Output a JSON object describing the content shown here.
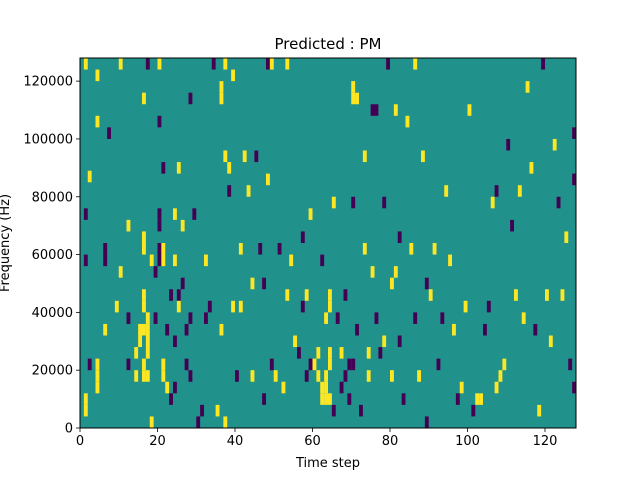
{
  "chart_data": {
    "type": "heatmap",
    "title": "Predicted : PM",
    "xlabel": "Time step",
    "ylabel": "Frequency (Hz)",
    "xlim": [
      0,
      128
    ],
    "ylim": [
      0,
      128000
    ],
    "x_ticks": [
      0,
      20,
      40,
      60,
      80,
      100,
      120
    ],
    "y_ticks": [
      0,
      20000,
      40000,
      60000,
      80000,
      100000,
      120000
    ],
    "x_tick_labels": [
      "0",
      "20",
      "40",
      "60",
      "80",
      "100",
      "120"
    ],
    "y_tick_labels": [
      "0",
      "20000",
      "40000",
      "60000",
      "80000",
      "100000",
      "120000"
    ],
    "colormap": "viridis",
    "value_levels": [
      -1,
      0,
      1
    ],
    "colors": {
      "low": "#440154",
      "mid": "#21918c",
      "high": "#fde725"
    },
    "background_value": 0,
    "grid": false,
    "cells": [
      {
        "t": 1,
        "f": 4000,
        "v": 1
      },
      {
        "t": 1,
        "f": 8000,
        "v": 1
      },
      {
        "t": 1,
        "f": 124000,
        "v": 1
      },
      {
        "t": 2,
        "f": 85000,
        "v": 1
      },
      {
        "t": 2,
        "f": 20000,
        "v": -1
      },
      {
        "t": 1,
        "f": 56000,
        "v": -1
      },
      {
        "t": 1,
        "f": 72000,
        "v": -1
      },
      {
        "t": 4,
        "f": 12000,
        "v": 1
      },
      {
        "t": 4,
        "f": 16000,
        "v": 1
      },
      {
        "t": 4,
        "f": 20000,
        "v": 1
      },
      {
        "t": 4,
        "f": 104000,
        "v": 1
      },
      {
        "t": 4,
        "f": 120000,
        "v": 1
      },
      {
        "t": 6,
        "f": 32000,
        "v": 1
      },
      {
        "t": 6,
        "f": 56000,
        "v": -1
      },
      {
        "t": 6,
        "f": 60000,
        "v": -1
      },
      {
        "t": 7,
        "f": 100000,
        "v": -1
      },
      {
        "t": 9,
        "f": 40000,
        "v": 1
      },
      {
        "t": 10,
        "f": 124000,
        "v": 1
      },
      {
        "t": 10,
        "f": 52000,
        "v": 1
      },
      {
        "t": 12,
        "f": 68000,
        "v": 1
      },
      {
        "t": 12,
        "f": 20000,
        "v": -1
      },
      {
        "t": 12,
        "f": 36000,
        "v": -1
      },
      {
        "t": 14,
        "f": 16000,
        "v": 1
      },
      {
        "t": 14,
        "f": 24000,
        "v": 1
      },
      {
        "t": 15,
        "f": 32000,
        "v": 1
      },
      {
        "t": 15,
        "f": 28000,
        "v": 1
      },
      {
        "t": 16,
        "f": 32000,
        "v": 1
      },
      {
        "t": 16,
        "f": 20000,
        "v": 1
      },
      {
        "t": 16,
        "f": 16000,
        "v": 1
      },
      {
        "t": 16,
        "f": 40000,
        "v": 1
      },
      {
        "t": 16,
        "f": 44000,
        "v": 1
      },
      {
        "t": 16,
        "f": 60000,
        "v": 1
      },
      {
        "t": 16,
        "f": 64000,
        "v": 1
      },
      {
        "t": 16,
        "f": 112000,
        "v": 1
      },
      {
        "t": 17,
        "f": 36000,
        "v": 1
      },
      {
        "t": 17,
        "f": 32000,
        "v": 1
      },
      {
        "t": 17,
        "f": 28000,
        "v": 1
      },
      {
        "t": 17,
        "f": 24000,
        "v": 1
      },
      {
        "t": 17,
        "f": 16000,
        "v": 1
      },
      {
        "t": 17,
        "f": 124000,
        "v": -1
      },
      {
        "t": 18,
        "f": 0,
        "v": 1
      },
      {
        "t": 18,
        "f": 56000,
        "v": 1
      },
      {
        "t": 19,
        "f": 36000,
        "v": -1
      },
      {
        "t": 19,
        "f": 52000,
        "v": -1
      },
      {
        "t": 20,
        "f": 56000,
        "v": -1
      },
      {
        "t": 20,
        "f": 60000,
        "v": -1
      },
      {
        "t": 20,
        "f": 68000,
        "v": -1
      },
      {
        "t": 20,
        "f": 72000,
        "v": -1
      },
      {
        "t": 20,
        "f": 104000,
        "v": -1
      },
      {
        "t": 20,
        "f": 124000,
        "v": 1
      },
      {
        "t": 21,
        "f": 16000,
        "v": 1
      },
      {
        "t": 21,
        "f": 20000,
        "v": 1
      },
      {
        "t": 21,
        "f": 56000,
        "v": 1
      },
      {
        "t": 21,
        "f": 60000,
        "v": 1
      },
      {
        "t": 21,
        "f": 88000,
        "v": -1
      },
      {
        "t": 22,
        "f": 32000,
        "v": -1
      },
      {
        "t": 22,
        "f": 12000,
        "v": 1
      },
      {
        "t": 23,
        "f": 44000,
        "v": -1
      },
      {
        "t": 23,
        "f": 8000,
        "v": -1
      },
      {
        "t": 24,
        "f": 12000,
        "v": -1
      },
      {
        "t": 24,
        "f": 28000,
        "v": -1
      },
      {
        "t": 24,
        "f": 56000,
        "v": 1
      },
      {
        "t": 24,
        "f": 72000,
        "v": 1
      },
      {
        "t": 25,
        "f": 88000,
        "v": 1
      },
      {
        "t": 25,
        "f": 44000,
        "v": -1
      },
      {
        "t": 25,
        "f": 40000,
        "v": 1
      },
      {
        "t": 26,
        "f": 68000,
        "v": 1
      },
      {
        "t": 26,
        "f": 48000,
        "v": -1
      },
      {
        "t": 27,
        "f": 20000,
        "v": -1
      },
      {
        "t": 27,
        "f": 32000,
        "v": -1
      },
      {
        "t": 28,
        "f": 16000,
        "v": -1
      },
      {
        "t": 28,
        "f": 36000,
        "v": -1
      },
      {
        "t": 28,
        "f": 112000,
        "v": -1
      },
      {
        "t": 29,
        "f": 72000,
        "v": -1
      },
      {
        "t": 30,
        "f": 0,
        "v": -1
      },
      {
        "t": 31,
        "f": 4000,
        "v": -1
      },
      {
        "t": 32,
        "f": 56000,
        "v": 1
      },
      {
        "t": 32,
        "f": 36000,
        "v": -1
      },
      {
        "t": 33,
        "f": 40000,
        "v": -1
      },
      {
        "t": 34,
        "f": 124000,
        "v": -1
      },
      {
        "t": 35,
        "f": 4000,
        "v": 1
      },
      {
        "t": 36,
        "f": 112000,
        "v": 1
      },
      {
        "t": 36,
        "f": 116000,
        "v": 1
      },
      {
        "t": 36,
        "f": 32000,
        "v": 1
      },
      {
        "t": 37,
        "f": 0,
        "v": 1
      },
      {
        "t": 37,
        "f": 92000,
        "v": 1
      },
      {
        "t": 37,
        "f": 124000,
        "v": 1
      },
      {
        "t": 38,
        "f": 88000,
        "v": 1
      },
      {
        "t": 38,
        "f": 80000,
        "v": -1
      },
      {
        "t": 39,
        "f": 40000,
        "v": 1
      },
      {
        "t": 39,
        "f": 120000,
        "v": 1
      },
      {
        "t": 40,
        "f": 16000,
        "v": -1
      },
      {
        "t": 41,
        "f": 60000,
        "v": 1
      },
      {
        "t": 41,
        "f": 40000,
        "v": 1
      },
      {
        "t": 42,
        "f": 92000,
        "v": 1
      },
      {
        "t": 43,
        "f": 80000,
        "v": 1
      },
      {
        "t": 44,
        "f": 16000,
        "v": 1
      },
      {
        "t": 44,
        "f": 48000,
        "v": 1
      },
      {
        "t": 45,
        "f": 92000,
        "v": -1
      },
      {
        "t": 46,
        "f": 60000,
        "v": -1
      },
      {
        "t": 47,
        "f": 8000,
        "v": -1
      },
      {
        "t": 47,
        "f": 48000,
        "v": -1
      },
      {
        "t": 48,
        "f": 84000,
        "v": 1
      },
      {
        "t": 48,
        "f": 124000,
        "v": -1
      },
      {
        "t": 49,
        "f": 124000,
        "v": 1
      },
      {
        "t": 49,
        "f": 20000,
        "v": -1
      },
      {
        "t": 50,
        "f": 16000,
        "v": 1
      },
      {
        "t": 51,
        "f": 60000,
        "v": -1
      },
      {
        "t": 52,
        "f": 12000,
        "v": 1
      },
      {
        "t": 53,
        "f": 124000,
        "v": 1
      },
      {
        "t": 53,
        "f": 44000,
        "v": 1
      },
      {
        "t": 54,
        "f": 56000,
        "v": 1
      },
      {
        "t": 55,
        "f": 28000,
        "v": 1
      },
      {
        "t": 56,
        "f": 24000,
        "v": -1
      },
      {
        "t": 57,
        "f": 40000,
        "v": -1
      },
      {
        "t": 57,
        "f": 64000,
        "v": -1
      },
      {
        "t": 58,
        "f": 16000,
        "v": -1
      },
      {
        "t": 58,
        "f": 44000,
        "v": 1
      },
      {
        "t": 59,
        "f": 20000,
        "v": -1
      },
      {
        "t": 59,
        "f": 72000,
        "v": 1
      },
      {
        "t": 60,
        "f": 20000,
        "v": 1
      },
      {
        "t": 61,
        "f": 16000,
        "v": 1
      },
      {
        "t": 61,
        "f": 24000,
        "v": 1
      },
      {
        "t": 62,
        "f": 12000,
        "v": 1
      },
      {
        "t": 62,
        "f": 8000,
        "v": 1
      },
      {
        "t": 62,
        "f": 56000,
        "v": -1
      },
      {
        "t": 63,
        "f": 8000,
        "v": 1
      },
      {
        "t": 63,
        "f": 12000,
        "v": 1
      },
      {
        "t": 63,
        "f": 16000,
        "v": 1
      },
      {
        "t": 63,
        "f": 36000,
        "v": 1
      },
      {
        "t": 64,
        "f": 8000,
        "v": 1
      },
      {
        "t": 64,
        "f": 20000,
        "v": 1
      },
      {
        "t": 64,
        "f": 24000,
        "v": 1
      },
      {
        "t": 64,
        "f": 40000,
        "v": 1
      },
      {
        "t": 64,
        "f": 44000,
        "v": 1
      },
      {
        "t": 65,
        "f": 4000,
        "v": -1
      },
      {
        "t": 65,
        "f": 76000,
        "v": 1
      },
      {
        "t": 66,
        "f": 36000,
        "v": -1
      },
      {
        "t": 67,
        "f": 12000,
        "v": -1
      },
      {
        "t": 67,
        "f": 24000,
        "v": 1
      },
      {
        "t": 68,
        "f": 16000,
        "v": -1
      },
      {
        "t": 68,
        "f": 44000,
        "v": -1
      },
      {
        "t": 69,
        "f": 8000,
        "v": -1
      },
      {
        "t": 69,
        "f": 20000,
        "v": -1
      },
      {
        "t": 70,
        "f": 20000,
        "v": -1
      },
      {
        "t": 70,
        "f": 76000,
        "v": -1
      },
      {
        "t": 70,
        "f": 112000,
        "v": 1
      },
      {
        "t": 70,
        "f": 116000,
        "v": 1
      },
      {
        "t": 71,
        "f": 32000,
        "v": -1
      },
      {
        "t": 71,
        "f": 112000,
        "v": 1
      },
      {
        "t": 72,
        "f": 4000,
        "v": -1
      },
      {
        "t": 73,
        "f": 60000,
        "v": 1
      },
      {
        "t": 73,
        "f": 92000,
        "v": 1
      },
      {
        "t": 74,
        "f": 16000,
        "v": 1
      },
      {
        "t": 74,
        "f": 24000,
        "v": 1
      },
      {
        "t": 75,
        "f": 52000,
        "v": 1
      },
      {
        "t": 75,
        "f": 108000,
        "v": -1
      },
      {
        "t": 76,
        "f": 108000,
        "v": -1
      },
      {
        "t": 76,
        "f": 36000,
        "v": -1
      },
      {
        "t": 77,
        "f": 24000,
        "v": -1
      },
      {
        "t": 78,
        "f": 28000,
        "v": 1
      },
      {
        "t": 78,
        "f": 76000,
        "v": -1
      },
      {
        "t": 79,
        "f": 124000,
        "v": -1
      },
      {
        "t": 80,
        "f": 16000,
        "v": 1
      },
      {
        "t": 80,
        "f": 48000,
        "v": 1
      },
      {
        "t": 81,
        "f": 52000,
        "v": 1
      },
      {
        "t": 81,
        "f": 108000,
        "v": 1
      },
      {
        "t": 82,
        "f": 28000,
        "v": -1
      },
      {
        "t": 82,
        "f": 64000,
        "v": -1
      },
      {
        "t": 83,
        "f": 8000,
        "v": -1
      },
      {
        "t": 84,
        "f": 104000,
        "v": 1
      },
      {
        "t": 85,
        "f": 60000,
        "v": 1
      },
      {
        "t": 86,
        "f": 124000,
        "v": 1
      },
      {
        "t": 86,
        "f": 36000,
        "v": -1
      },
      {
        "t": 87,
        "f": 16000,
        "v": 1
      },
      {
        "t": 88,
        "f": 92000,
        "v": 1
      },
      {
        "t": 89,
        "f": 0,
        "v": -1
      },
      {
        "t": 89,
        "f": 48000,
        "v": -1
      },
      {
        "t": 90,
        "f": 44000,
        "v": 1
      },
      {
        "t": 91,
        "f": 60000,
        "v": 1
      },
      {
        "t": 92,
        "f": 20000,
        "v": -1
      },
      {
        "t": 93,
        "f": 36000,
        "v": -1
      },
      {
        "t": 94,
        "f": 80000,
        "v": 1
      },
      {
        "t": 95,
        "f": 56000,
        "v": 1
      },
      {
        "t": 96,
        "f": 32000,
        "v": 1
      },
      {
        "t": 97,
        "f": 8000,
        "v": -1
      },
      {
        "t": 98,
        "f": 12000,
        "v": 1
      },
      {
        "t": 99,
        "f": 40000,
        "v": 1
      },
      {
        "t": 100,
        "f": 108000,
        "v": 1
      },
      {
        "t": 101,
        "f": 4000,
        "v": -1
      },
      {
        "t": 102,
        "f": 8000,
        "v": 1
      },
      {
        "t": 103,
        "f": 8000,
        "v": 1
      },
      {
        "t": 104,
        "f": 32000,
        "v": -1
      },
      {
        "t": 105,
        "f": 40000,
        "v": -1
      },
      {
        "t": 106,
        "f": 76000,
        "v": 1
      },
      {
        "t": 107,
        "f": 12000,
        "v": 1
      },
      {
        "t": 107,
        "f": 80000,
        "v": -1
      },
      {
        "t": 108,
        "f": 16000,
        "v": 1
      },
      {
        "t": 109,
        "f": 20000,
        "v": 1
      },
      {
        "t": 110,
        "f": 96000,
        "v": -1
      },
      {
        "t": 111,
        "f": 68000,
        "v": -1
      },
      {
        "t": 112,
        "f": 44000,
        "v": 1
      },
      {
        "t": 113,
        "f": 80000,
        "v": 1
      },
      {
        "t": 114,
        "f": 36000,
        "v": 1
      },
      {
        "t": 115,
        "f": 116000,
        "v": 1
      },
      {
        "t": 116,
        "f": 88000,
        "v": 1
      },
      {
        "t": 117,
        "f": 32000,
        "v": -1
      },
      {
        "t": 118,
        "f": 4000,
        "v": 1
      },
      {
        "t": 119,
        "f": 124000,
        "v": -1
      },
      {
        "t": 120,
        "f": 44000,
        "v": 1
      },
      {
        "t": 121,
        "f": 28000,
        "v": 1
      },
      {
        "t": 122,
        "f": 96000,
        "v": 1
      },
      {
        "t": 123,
        "f": 76000,
        "v": -1
      },
      {
        "t": 124,
        "f": 44000,
        "v": 1
      },
      {
        "t": 125,
        "f": 64000,
        "v": 1
      },
      {
        "t": 126,
        "f": 20000,
        "v": -1
      },
      {
        "t": 127,
        "f": 12000,
        "v": -1
      },
      {
        "t": 127,
        "f": 84000,
        "v": -1
      },
      {
        "t": 127,
        "f": 100000,
        "v": -1
      }
    ]
  }
}
